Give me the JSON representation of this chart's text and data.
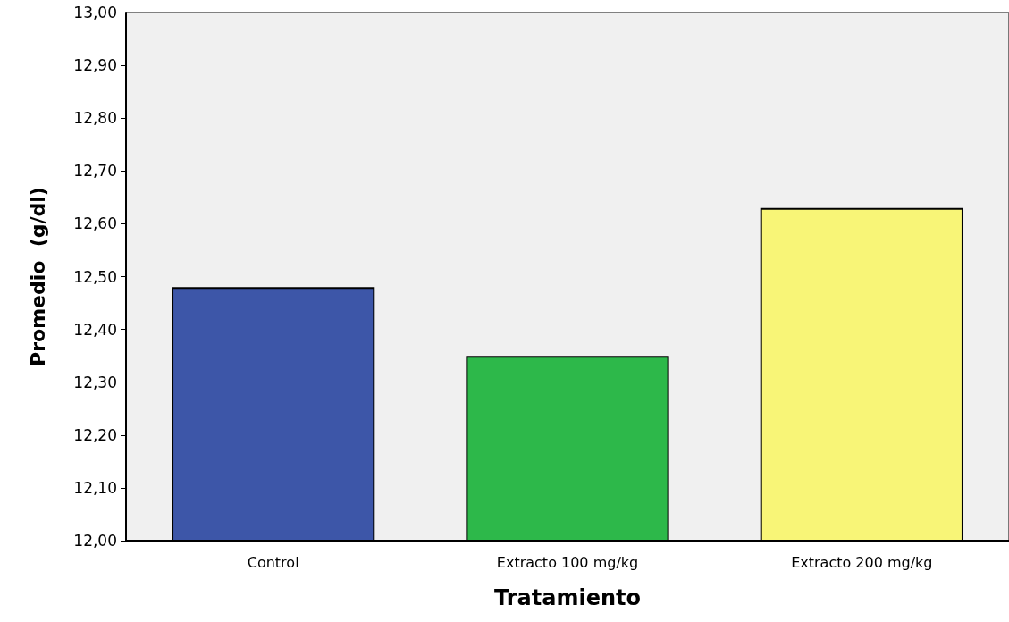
{
  "chart_data": {
    "type": "bar",
    "xlabel": "Tratamiento",
    "ylabel": "Promedio  (g/dl)",
    "categories": [
      "Control",
      "Extracto 100 mg/kg",
      "Extracto 200 mg/kg"
    ],
    "values": [
      12.48,
      12.35,
      12.63
    ],
    "colors": [
      "#3d56a8",
      "#2db84a",
      "#f8f577"
    ],
    "ylim": [
      12,
      13
    ],
    "yticks": [
      {
        "value": 12,
        "label": "12,00"
      },
      {
        "value": 12.1,
        "label": "12,10"
      },
      {
        "value": 12.2,
        "label": "12,20"
      },
      {
        "value": 12.3,
        "label": "12,30"
      },
      {
        "value": 12.4,
        "label": "12,40"
      },
      {
        "value": 12.5,
        "label": "12,50"
      },
      {
        "value": 12.6,
        "label": "12,60"
      },
      {
        "value": 12.7,
        "label": "12,70"
      },
      {
        "value": 12.8,
        "label": "12,80"
      },
      {
        "value": 12.9,
        "label": "12,90"
      },
      {
        "value": 13,
        "label": "13,00"
      }
    ],
    "grid": false
  }
}
